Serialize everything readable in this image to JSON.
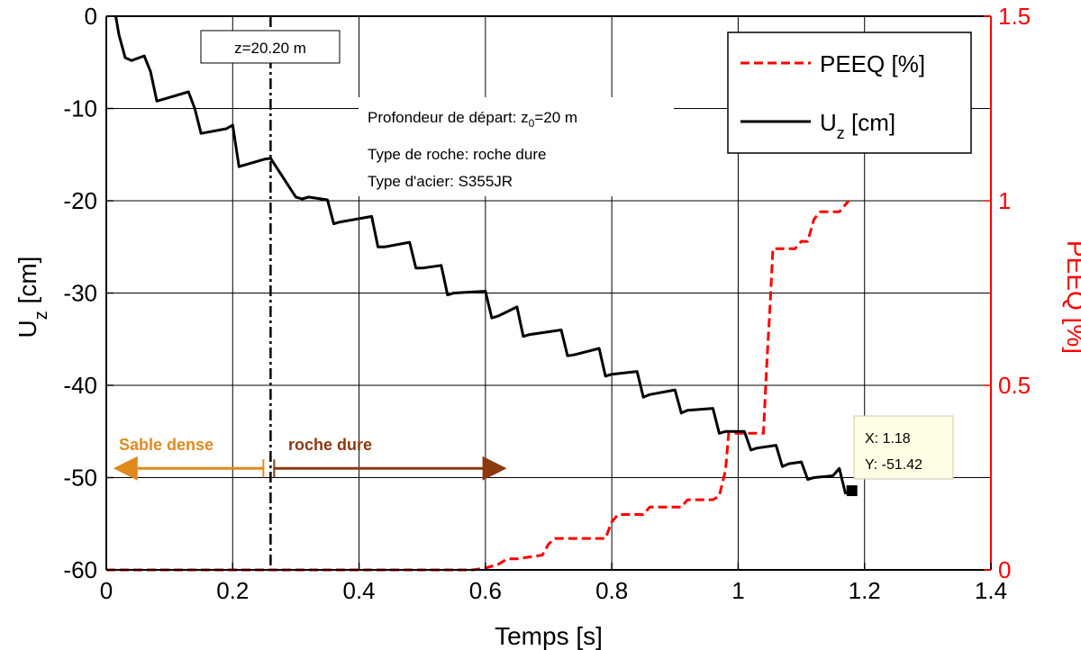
{
  "chart_data": {
    "type": "line",
    "xlabel": "Temps [s]",
    "ylabel_left": "U",
    "ylabel_left_sub": "z",
    "ylabel_left_unit": " [cm]",
    "ylabel_right": "PEEQ [%]",
    "xlim": [
      0,
      1.4
    ],
    "ylim_left": [
      -60,
      0
    ],
    "ylim_right": [
      0,
      1.5
    ],
    "xticks": [
      "0",
      "0.2",
      "0.4",
      "0.6",
      "0.8",
      "1",
      "1.2",
      "1.4"
    ],
    "yticks_left": [
      "0",
      "-10",
      "-20",
      "-30",
      "-40",
      "-50",
      "-60"
    ],
    "yticks_right": [
      "0",
      "0.5",
      "1",
      "1.5"
    ],
    "grid": true,
    "legend_position": "top-right",
    "colors": {
      "uz": "#000000",
      "peeq": "#ff0000",
      "sand": "#e08a1e",
      "rock": "#8b3a10",
      "tip_bg": "#ffffe6"
    },
    "series": [
      {
        "name": "PEEQ [%]",
        "axis": "right",
        "style": "dashed",
        "x": [
          0,
          0.58,
          0.6,
          0.62,
          0.635,
          0.65,
          0.69,
          0.7,
          0.71,
          0.79,
          0.8,
          0.81,
          0.85,
          0.86,
          0.91,
          0.92,
          0.96,
          0.97,
          0.98,
          0.985,
          1.03,
          1.04,
          1.045,
          1.05,
          1.055,
          1.08,
          1.09,
          1.095,
          1.1,
          1.11,
          1.12,
          1.13,
          1.16,
          1.17,
          1.175
        ],
        "values": [
          0,
          0,
          0.005,
          0.015,
          0.03,
          0.03,
          0.04,
          0.07,
          0.085,
          0.085,
          0.13,
          0.15,
          0.15,
          0.17,
          0.17,
          0.19,
          0.19,
          0.2,
          0.27,
          0.37,
          0.37,
          0.37,
          0.55,
          0.7,
          0.87,
          0.87,
          0.87,
          0.88,
          0.89,
          0.89,
          0.95,
          0.97,
          0.97,
          0.99,
          1.0
        ]
      },
      {
        "name": "U",
        "name_sub": "z",
        "name_unit": " [cm]",
        "axis": "left",
        "style": "solid",
        "x": [
          0.015,
          0.02,
          0.03,
          0.04,
          0.06,
          0.07,
          0.08,
          0.09,
          0.13,
          0.14,
          0.15,
          0.19,
          0.2,
          0.21,
          0.25,
          0.26,
          0.3,
          0.31,
          0.32,
          0.35,
          0.36,
          0.37,
          0.42,
          0.43,
          0.44,
          0.48,
          0.49,
          0.5,
          0.53,
          0.54,
          0.55,
          0.6,
          0.61,
          0.62,
          0.65,
          0.66,
          0.67,
          0.72,
          0.73,
          0.74,
          0.78,
          0.79,
          0.8,
          0.84,
          0.85,
          0.86,
          0.9,
          0.91,
          0.92,
          0.96,
          0.97,
          0.98,
          1.01,
          1.02,
          1.03,
          1.06,
          1.07,
          1.08,
          1.1,
          1.11,
          1.12,
          1.15,
          1.16,
          1.17
        ],
        "values": [
          0,
          -2,
          -4.5,
          -4.8,
          -4.3,
          -6,
          -9.2,
          -9,
          -8.2,
          -10,
          -12.7,
          -12.2,
          -11.8,
          -16.3,
          -15.5,
          -15.4,
          -19.6,
          -19.8,
          -19.6,
          -19.9,
          -22.5,
          -22.3,
          -21.7,
          -25,
          -25,
          -24.5,
          -27.3,
          -27.3,
          -27,
          -30.2,
          -30,
          -29.8,
          -32.7,
          -32.5,
          -31.5,
          -34.7,
          -34.5,
          -34,
          -36.8,
          -36.7,
          -36,
          -39,
          -38.8,
          -38.5,
          -41.3,
          -41,
          -40.5,
          -43,
          -42.7,
          -42.5,
          -45.2,
          -45,
          -45,
          -47,
          -46.8,
          -46.5,
          -48.8,
          -48.5,
          -48.3,
          -50.2,
          -50,
          -49.8,
          -49,
          -51.8
        ]
      }
    ],
    "depth_marker": {
      "x": 0.26,
      "label": "z=20.20 m"
    },
    "info_lines": [
      "Profondeur de départ: z",
      "0",
      "=20 m",
      "Type de roche: roche dure",
      "Type d'acier: S355JR"
    ],
    "zones": {
      "left_label": "Sable dense",
      "right_label": "roche dure",
      "arrow_y": -49,
      "left_end": 0.015,
      "right_end": 0.63
    },
    "data_tip": {
      "x": 1.18,
      "y": -51.42,
      "x_label": "X: 1.18",
      "y_label": "Y: -51.42"
    }
  }
}
